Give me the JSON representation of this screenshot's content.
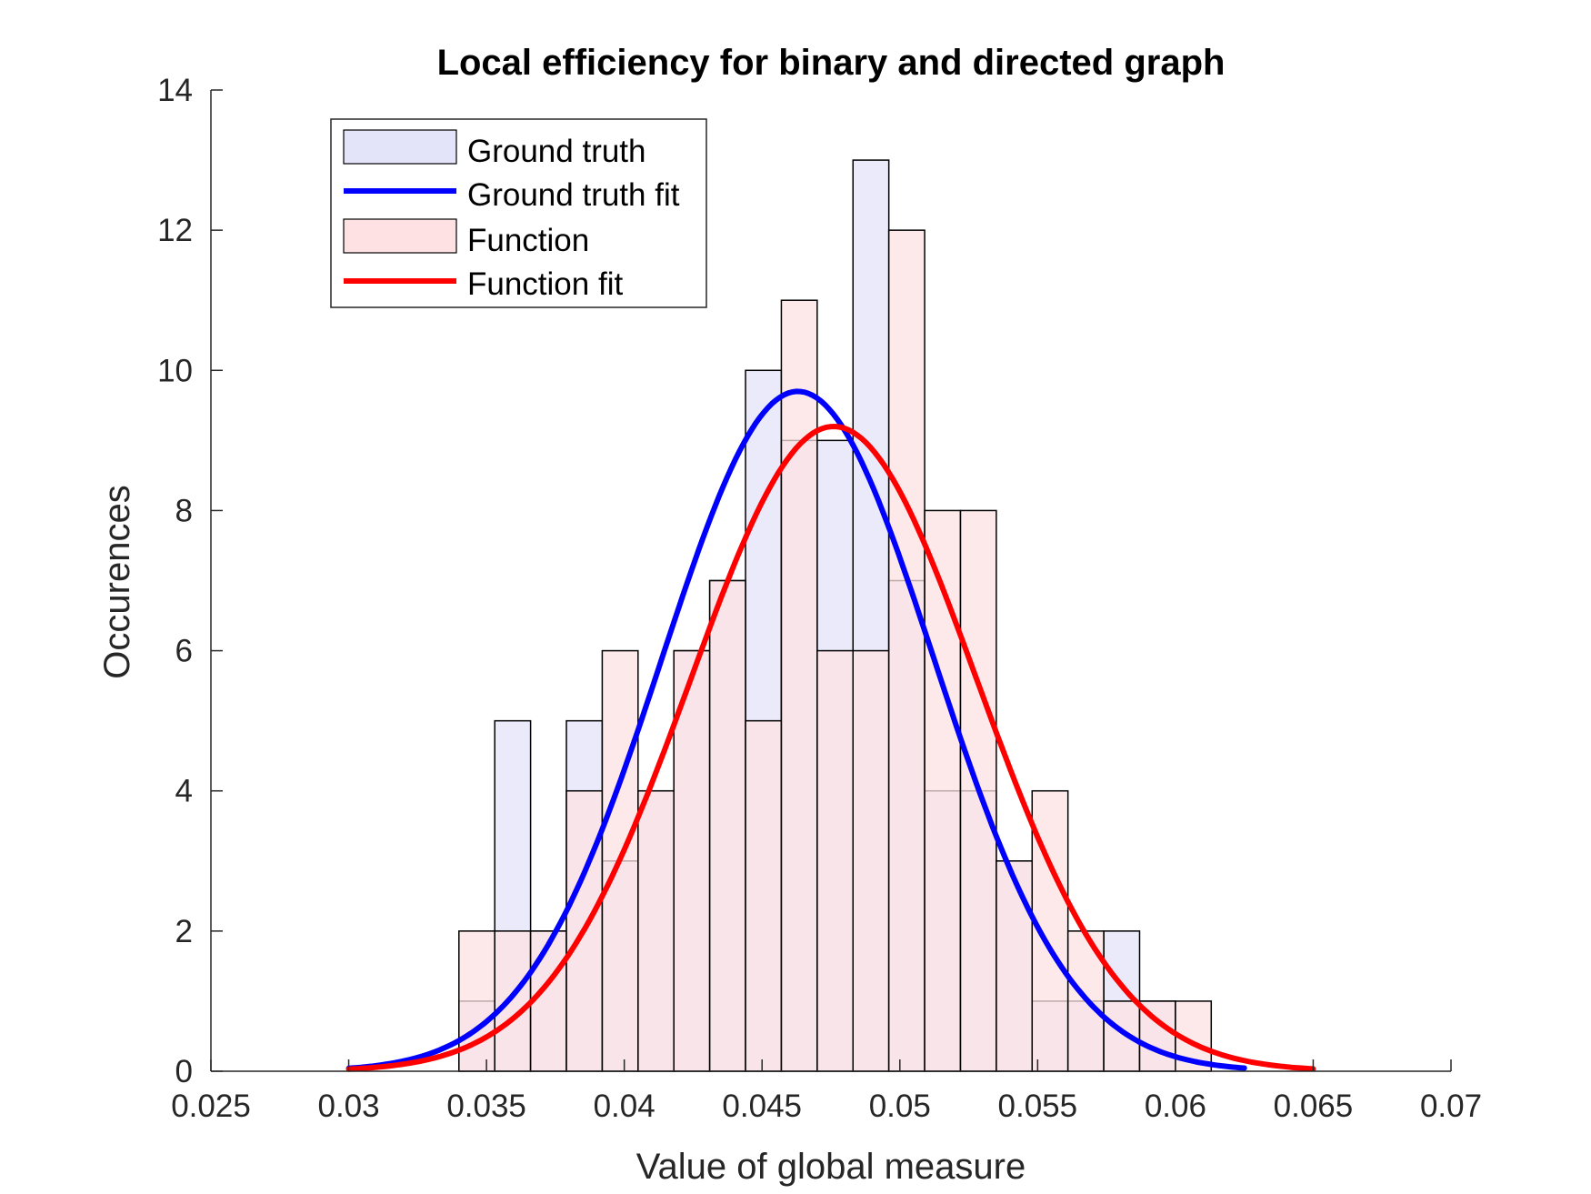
{
  "chart_data": {
    "type": "bar",
    "title": "Local efficiency for binary and directed graph",
    "xlabel": "Value of global measure",
    "ylabel": "Occurences",
    "xlim": [
      0.025,
      0.07
    ],
    "ylim": [
      0,
      14
    ],
    "xticks": [
      "0.025",
      "0.03",
      "0.035",
      "0.04",
      "0.045",
      "0.05",
      "0.055",
      "0.06",
      "0.065",
      "0.07"
    ],
    "yticks": [
      "0",
      "2",
      "4",
      "6",
      "8",
      "10",
      "12",
      "14"
    ],
    "grid": false,
    "legend_position": "top-left",
    "series": [
      {
        "name": "Ground truth",
        "kind": "histogram",
        "color": "#e3e3fa",
        "bin_edges": [
          0.034,
          0.0353,
          0.0366,
          0.0379,
          0.0392,
          0.0405,
          0.0418,
          0.0431,
          0.0444,
          0.0457,
          0.047,
          0.0483,
          0.0496,
          0.0509,
          0.0522,
          0.0535,
          0.0548,
          0.0561,
          0.0574,
          0.0587,
          0.06
        ],
        "counts": [
          1,
          5,
          2,
          5,
          3,
          4,
          6,
          7,
          10,
          9,
          9,
          13,
          7,
          4,
          4,
          3,
          1,
          1,
          2,
          1
        ]
      },
      {
        "name": "Ground truth fit",
        "kind": "normal-fit",
        "color": "#0000ff",
        "mean": 0.0463,
        "peak": 9.7,
        "sd": 0.00494,
        "x_range": [
          0.03,
          0.0625
        ]
      },
      {
        "name": "Function",
        "kind": "histogram",
        "color": "#fde1e3",
        "bin_edges": [
          0.034,
          0.0353,
          0.0366,
          0.0379,
          0.0392,
          0.0405,
          0.0418,
          0.0431,
          0.0444,
          0.0457,
          0.047,
          0.0483,
          0.0496,
          0.0509,
          0.0522,
          0.0535,
          0.0548,
          0.0561,
          0.0574,
          0.0587,
          0.06,
          0.0613
        ],
        "counts": [
          2,
          2,
          2,
          4,
          6,
          4,
          6,
          7,
          5,
          11,
          6,
          6,
          12,
          8,
          8,
          3,
          4,
          2,
          1,
          1,
          1
        ]
      },
      {
        "name": "Function fit",
        "kind": "normal-fit",
        "color": "#ff0000",
        "mean": 0.0476,
        "peak": 9.2,
        "sd": 0.0052,
        "x_range": [
          0.03,
          0.065
        ]
      }
    ]
  }
}
